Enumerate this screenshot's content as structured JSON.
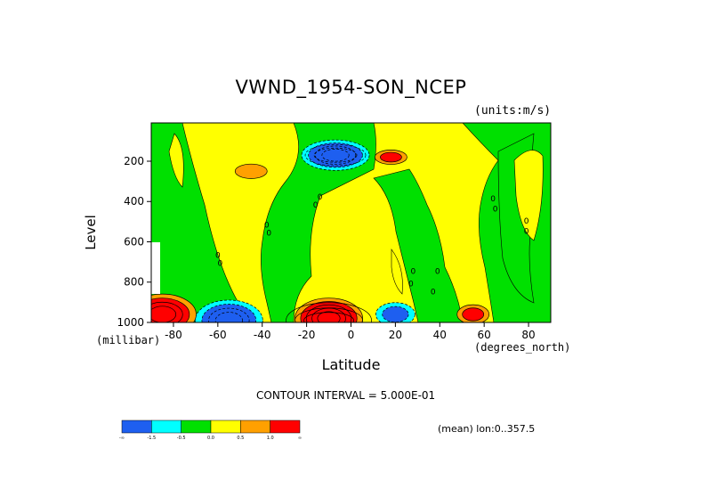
{
  "chart_data": {
    "type": "heatmap",
    "title": "VWND_1954-SON_NCEP",
    "units": "(units:m/s)",
    "xlabel": "Latitude",
    "x_units": "(degrees_north)",
    "ylabel": "Level",
    "y_units": "(millibar)",
    "xlim": [
      -90,
      90
    ],
    "ylim": [
      1000,
      10
    ],
    "x_ticks": [
      -80,
      -60,
      -40,
      -20,
      0,
      20,
      40,
      60,
      80
    ],
    "y_ticks": [
      200,
      400,
      600,
      800,
      1000
    ],
    "contour_interval_text": "CONTOUR INTERVAL = 5.000E-01",
    "mean_text": "(mean) lon:0..357.5",
    "colorbar": {
      "colors": [
        "#1e5ff0",
        "#00ffff",
        "#00e000",
        "#ffff00",
        "#ffa000",
        "#ff0000"
      ],
      "labels": [
        "-∞",
        "-1.5",
        "-0.5",
        "0.0",
        "0.5",
        "1.0",
        "∞"
      ]
    },
    "features": [
      {
        "lat": -7,
        "level": 170,
        "sign": "negative",
        "peak": -2.0
      },
      {
        "lat": -55,
        "level": 990,
        "sign": "negative",
        "peak": -2.0
      },
      {
        "lat": 20,
        "level": 960,
        "sign": "negative",
        "peak": -1.0
      },
      {
        "lat": -10,
        "level": 980,
        "sign": "positive",
        "peak": 2.5
      },
      {
        "lat": -85,
        "level": 960,
        "sign": "positive",
        "peak": 2.0
      },
      {
        "lat": 55,
        "level": 960,
        "sign": "positive",
        "peak": 0.8
      },
      {
        "lat": 18,
        "level": 180,
        "sign": "positive",
        "peak": 0.8
      },
      {
        "lat": -45,
        "level": 250,
        "sign": "positive",
        "peak": 0.6
      }
    ]
  }
}
